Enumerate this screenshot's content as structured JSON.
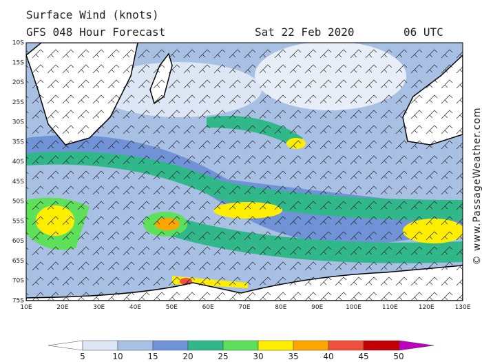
{
  "header": {
    "title": "Surface Wind (knots)",
    "model": "GFS 048 Hour Forecast",
    "date": "Sat 22 Feb 2020",
    "time": "06 UTC"
  },
  "axes": {
    "latitude": [
      "10S",
      "15S",
      "20S",
      "25S",
      "30S",
      "35S",
      "40S",
      "45S",
      "50S",
      "55S",
      "60S",
      "65S",
      "70S",
      "75S"
    ],
    "longitude": [
      "10E",
      "20E",
      "30E",
      "40E",
      "50E",
      "60E",
      "70E",
      "80E",
      "90E",
      "100E",
      "110E",
      "120E",
      "130E"
    ]
  },
  "legend": {
    "labels": [
      "5",
      "10",
      "15",
      "20",
      "25",
      "30",
      "35",
      "40",
      "45",
      "50"
    ]
  },
  "credit": "© www.PassageWeather.com"
}
